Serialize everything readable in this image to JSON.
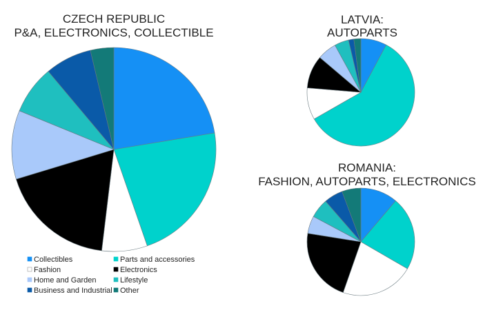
{
  "chart_data": [
    {
      "type": "pie",
      "title_lines": [
        "CZECH REPUBLIC",
        "P&A, ELECTRONICS, COLLECTIBLE"
      ],
      "categories": [
        "Collectibles",
        "Parts and accessories",
        "Fashion",
        "Electronics",
        "Home and Garden",
        "Lifestyle",
        "Business and Industrial",
        "Other"
      ],
      "values": [
        22.4,
        22.3,
        7.2,
        18.4,
        10.9,
        7.7,
        7.4,
        3.7
      ],
      "unit": "%"
    },
    {
      "type": "pie",
      "title_lines": [
        "LATVIA:",
        "AUTOPARTS"
      ],
      "categories": [
        "Collectibles",
        "Parts and accessories",
        "Fashion",
        "Electronics",
        "Home and Garden",
        "Lifestyle",
        "Business and Industrial",
        "Other"
      ],
      "values": [
        7.8,
        59.0,
        9.6,
        9.9,
        5.8,
        4.3,
        1.6,
        2.1
      ],
      "unit": "%"
    },
    {
      "type": "pie",
      "title_lines": [
        "ROMANIA:",
        "FASHION, AUTOPARTS, ELECTRONICS"
      ],
      "categories": [
        "Collectibles",
        "Parts and accessories",
        "Fashion",
        "Electronics",
        "Home and Garden",
        "Lifestyle",
        "Business and Industrial",
        "Other"
      ],
      "values": [
        11.2,
        22.2,
        22.0,
        22.2,
        5.3,
        5.8,
        5.7,
        5.7
      ],
      "unit": "%"
    }
  ],
  "legend": {
    "placement": "bottom-left",
    "items": [
      {
        "label": "Collectibles",
        "color": "#1590f5"
      },
      {
        "label": "Parts and accessories",
        "color": "#00d2cc"
      },
      {
        "label": "Fashion",
        "color": "#ffffff"
      },
      {
        "label": "Electronics",
        "color": "#000000"
      },
      {
        "label": "Home and Garden",
        "color": "#a9c9fa"
      },
      {
        "label": "Lifestyle",
        "color": "#1fbfbf"
      },
      {
        "label": "Business and Industrial",
        "color": "#0a5aa8"
      },
      {
        "label": "Other",
        "color": "#137a78"
      }
    ]
  }
}
